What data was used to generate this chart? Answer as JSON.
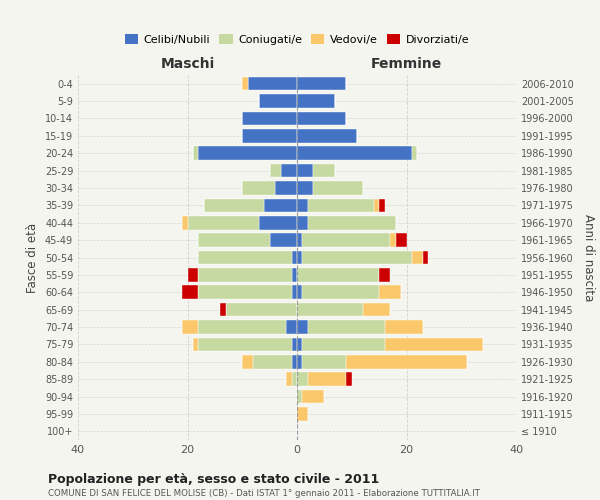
{
  "age_groups": [
    "100+",
    "95-99",
    "90-94",
    "85-89",
    "80-84",
    "75-79",
    "70-74",
    "65-69",
    "60-64",
    "55-59",
    "50-54",
    "45-49",
    "40-44",
    "35-39",
    "30-34",
    "25-29",
    "20-24",
    "15-19",
    "10-14",
    "5-9",
    "0-4"
  ],
  "birth_years": [
    "≤ 1910",
    "1911-1915",
    "1916-1920",
    "1921-1925",
    "1926-1930",
    "1931-1935",
    "1936-1940",
    "1941-1945",
    "1946-1950",
    "1951-1955",
    "1956-1960",
    "1961-1965",
    "1966-1970",
    "1971-1975",
    "1976-1980",
    "1981-1985",
    "1986-1990",
    "1991-1995",
    "1996-2000",
    "2001-2005",
    "2006-2010"
  ],
  "maschi": {
    "celibi": [
      0,
      0,
      0,
      0,
      1,
      1,
      2,
      0,
      1,
      1,
      1,
      5,
      7,
      6,
      4,
      3,
      18,
      10,
      10,
      7,
      9
    ],
    "coniugati": [
      0,
      0,
      0,
      1,
      7,
      17,
      16,
      13,
      17,
      17,
      17,
      13,
      13,
      11,
      6,
      2,
      1,
      0,
      0,
      0,
      0
    ],
    "vedovi": [
      0,
      0,
      0,
      1,
      2,
      1,
      3,
      0,
      0,
      0,
      0,
      0,
      1,
      0,
      0,
      0,
      0,
      0,
      0,
      0,
      1
    ],
    "divorziati": [
      0,
      0,
      0,
      0,
      0,
      0,
      0,
      1,
      3,
      2,
      0,
      0,
      0,
      0,
      0,
      0,
      0,
      0,
      0,
      0,
      0
    ]
  },
  "femmine": {
    "nubili": [
      0,
      0,
      0,
      0,
      1,
      1,
      2,
      0,
      1,
      0,
      1,
      1,
      2,
      2,
      3,
      3,
      21,
      11,
      9,
      7,
      9
    ],
    "coniugate": [
      0,
      0,
      1,
      2,
      8,
      15,
      14,
      12,
      14,
      15,
      20,
      16,
      16,
      12,
      9,
      4,
      1,
      0,
      0,
      0,
      0
    ],
    "vedove": [
      0,
      2,
      4,
      7,
      22,
      18,
      7,
      5,
      4,
      0,
      2,
      1,
      0,
      1,
      0,
      0,
      0,
      0,
      0,
      0,
      0
    ],
    "divorziate": [
      0,
      0,
      0,
      1,
      0,
      0,
      0,
      0,
      0,
      2,
      1,
      2,
      0,
      1,
      0,
      0,
      0,
      0,
      0,
      0,
      0
    ]
  },
  "colors": {
    "celibi": "#4472C4",
    "coniugati": "#C6D9A0",
    "vedovi": "#FAC86B",
    "divorziati": "#CC0000"
  },
  "xlim": 40,
  "title": "Popolazione per età, sesso e stato civile - 2011",
  "subtitle": "COMUNE DI SAN FELICE DEL MOLISE (CB) - Dati ISTAT 1° gennaio 2011 - Elaborazione TUTTITALIA.IT",
  "ylabel_left": "Fasce di età",
  "ylabel_right": "Anni di nascita",
  "xlabel_maschi": "Maschi",
  "xlabel_femmine": "Femmine",
  "bg_color": "#f5f5f0",
  "grid_color": "#cccccc"
}
